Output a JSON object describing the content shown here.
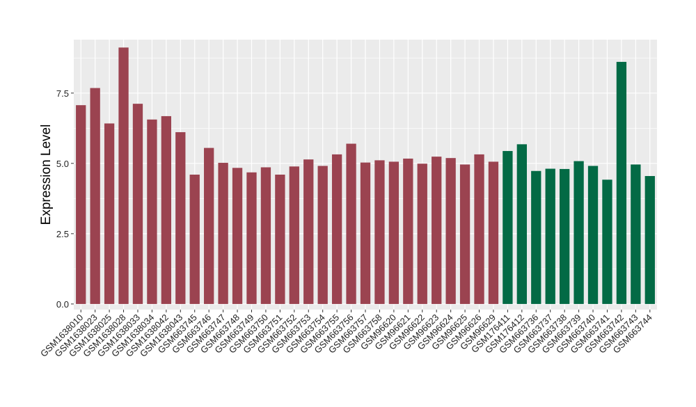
{
  "chart_data": {
    "type": "bar",
    "title": "",
    "xlabel": "",
    "ylabel": "Expression Level",
    "ylim": [
      -0.2,
      9.4
    ],
    "yticks": [
      0.0,
      2.5,
      5.0,
      7.5
    ],
    "ytick_labels": [
      "0.0",
      "2.5",
      "5.0",
      "7.5"
    ],
    "grid": true,
    "legend": "none",
    "panel_background": "#ebebeb",
    "grid_color": "#ffffff",
    "categories": [
      "GSM1638010",
      "GSM1638023",
      "GSM1638025",
      "GSM1638028",
      "GSM1638033",
      "GSM1638034",
      "GSM1638042",
      "GSM1638043",
      "GSM663745",
      "GSM663746",
      "GSM663747",
      "GSM663748",
      "GSM663749",
      "GSM663750",
      "GSM663751",
      "GSM663752",
      "GSM663753",
      "GSM663754",
      "GSM663755",
      "GSM663756",
      "GSM663757",
      "GSM663758",
      "GSM96620",
      "GSM96621",
      "GSM96622",
      "GSM96623",
      "GSM96624",
      "GSM96625",
      "GSM96626",
      "GSM96629",
      "GSM176411",
      "GSM176412",
      "GSM663736",
      "GSM663737",
      "GSM663738",
      "GSM663739",
      "GSM663740",
      "GSM663741",
      "GSM663742",
      "GSM663743",
      "GSM663744"
    ],
    "values": [
      7.07,
      7.68,
      6.42,
      9.12,
      7.12,
      6.56,
      6.68,
      6.11,
      4.6,
      5.55,
      5.02,
      4.84,
      4.68,
      4.86,
      4.6,
      4.89,
      5.14,
      4.91,
      5.32,
      5.7,
      5.03,
      5.11,
      5.06,
      5.17,
      4.99,
      5.24,
      5.19,
      4.96,
      5.32,
      5.06,
      5.44,
      5.68,
      4.73,
      4.81,
      4.8,
      5.08,
      4.91,
      4.42,
      8.61,
      4.96,
      4.55
    ],
    "bar_colors": [
      "#9b4350",
      "#9b4350",
      "#9b4350",
      "#9b4350",
      "#9b4350",
      "#9b4350",
      "#9b4350",
      "#9b4350",
      "#9b4350",
      "#9b4350",
      "#9b4350",
      "#9b4350",
      "#9b4350",
      "#9b4350",
      "#9b4350",
      "#9b4350",
      "#9b4350",
      "#9b4350",
      "#9b4350",
      "#9b4350",
      "#9b4350",
      "#9b4350",
      "#9b4350",
      "#9b4350",
      "#9b4350",
      "#9b4350",
      "#9b4350",
      "#9b4350",
      "#9b4350",
      "#9b4350",
      "#036a45",
      "#036a45",
      "#036a45",
      "#036a45",
      "#036a45",
      "#036a45",
      "#036a45",
      "#036a45",
      "#036a45",
      "#036a45",
      "#036a45"
    ]
  }
}
